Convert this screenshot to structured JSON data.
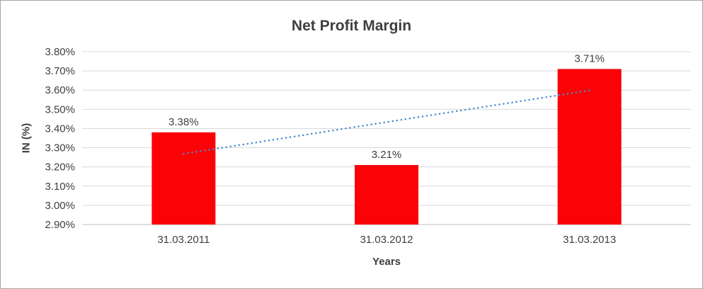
{
  "chart_data": {
    "type": "bar",
    "title": "Net Profit Margin",
    "xlabel": "Years",
    "ylabel": "IN (%)",
    "categories": [
      "31.03.2011",
      "31.03.2012",
      "31.03.2013"
    ],
    "values": [
      3.38,
      3.21,
      3.71
    ],
    "data_labels": [
      "3.38%",
      "3.21%",
      "3.71%"
    ],
    "ylim": [
      2.9,
      3.8
    ],
    "ytick_step": 0.1,
    "ytick_labels": [
      "2.90%",
      "3.00%",
      "3.10%",
      "3.20%",
      "3.30%",
      "3.40%",
      "3.50%",
      "3.60%",
      "3.70%",
      "3.80%"
    ],
    "grid": true,
    "legend": "none",
    "trendline": {
      "type": "linear",
      "style": "dotted"
    },
    "colors": {
      "bar": "#fb0207",
      "text": "#3f3f3f",
      "gridline": "#d9d9d9",
      "axis_line": "#bfbfbf",
      "trendline": "#4a89c8",
      "background": "#ffffff",
      "border": "#a6a6a6"
    }
  }
}
